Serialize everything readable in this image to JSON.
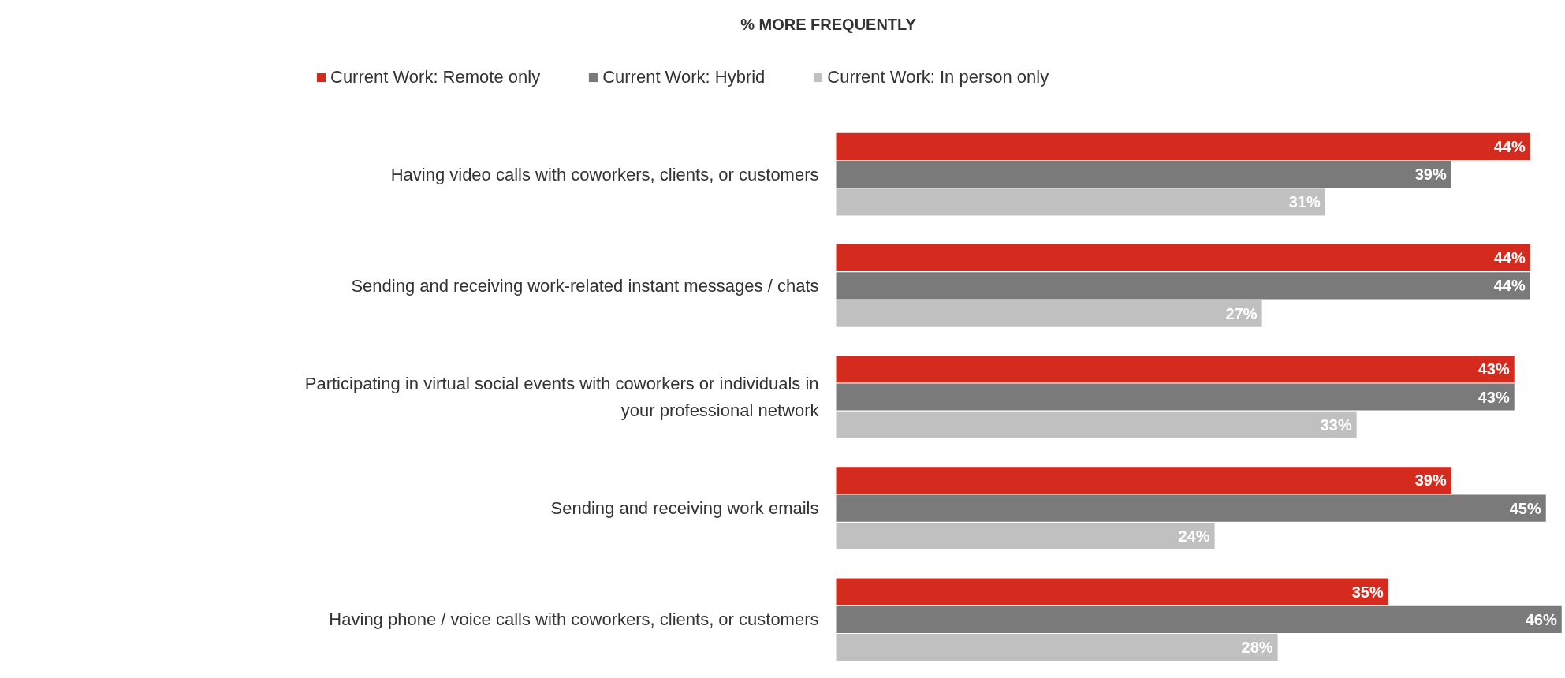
{
  "chart_data": {
    "type": "bar",
    "orientation": "horizontal",
    "title": "% MORE FREQUENTLY",
    "categories": [
      "Having video calls with coworkers, clients, or customers",
      "Sending and receiving work-related instant messages / chats",
      "Participating in virtual social events with coworkers or individuals in your professional network",
      "Sending and receiving work emails",
      "Having phone / voice calls with coworkers, clients, or customers"
    ],
    "series": [
      {
        "name": "Current Work: Remote only",
        "color": "#d52b1e",
        "values": [
          44,
          44,
          43,
          39,
          35
        ],
        "value_labels": [
          "44%",
          "44%",
          "43%",
          "39%",
          "35%"
        ]
      },
      {
        "name": "Current Work: Hybrid",
        "color": "#7a7a7a",
        "values": [
          39,
          44,
          43,
          45,
          46
        ],
        "value_labels": [
          "39%",
          "44%",
          "43%",
          "45%",
          "46%"
        ]
      },
      {
        "name": "Current Work: In person only",
        "color": "#c0c0c0",
        "values": [
          31,
          27,
          33,
          24,
          28
        ],
        "value_labels": [
          "31%",
          "27%",
          "33%",
          "24%",
          "28%"
        ]
      }
    ],
    "legend": "top",
    "grid": false
  }
}
